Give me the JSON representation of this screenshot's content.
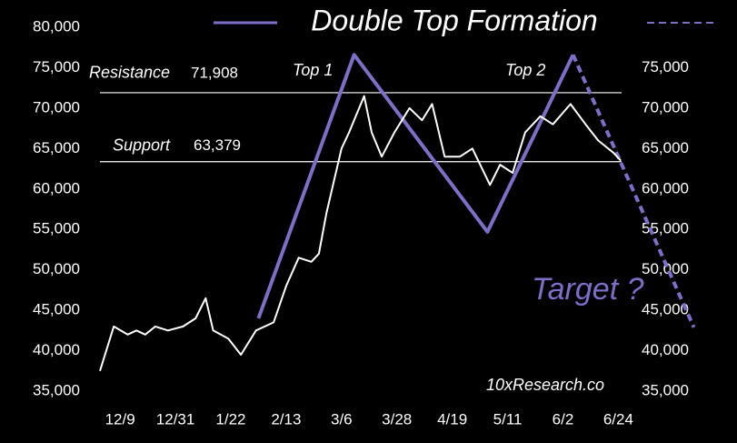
{
  "chart_data": {
    "type": "line",
    "title": "Double Top Formation",
    "xlim": [
      -8,
      230
    ],
    "xticks": [
      {
        "value": 0,
        "label": "12/9"
      },
      {
        "value": 22,
        "label": "12/31"
      },
      {
        "value": 44,
        "label": "1/22"
      },
      {
        "value": 66,
        "label": "2/13"
      },
      {
        "value": 88,
        "label": "3/6"
      },
      {
        "value": 110,
        "label": "3/28"
      },
      {
        "value": 132,
        "label": "4/19"
      },
      {
        "value": 154,
        "label": "5/11"
      },
      {
        "value": 176,
        "label": "6/2"
      },
      {
        "value": 198,
        "label": "6/24"
      }
    ],
    "ylim": [
      35000,
      80000
    ],
    "yticks": [
      {
        "value": 35000,
        "label": "35,000"
      },
      {
        "value": 40000,
        "label": "40,000"
      },
      {
        "value": 45000,
        "label": "45,000"
      },
      {
        "value": 50000,
        "label": "50,000"
      },
      {
        "value": 55000,
        "label": "55,000"
      },
      {
        "value": 60000,
        "label": "60,000"
      },
      {
        "value": 65000,
        "label": "65,000"
      },
      {
        "value": 70000,
        "label": "70,000"
      },
      {
        "value": 75000,
        "label": "75,000"
      },
      {
        "value": 80000,
        "label": "80,000"
      }
    ],
    "y2lim": [
      35000,
      80000
    ],
    "y2ticks": [
      {
        "value": 35000,
        "label": "35,000"
      },
      {
        "value": 40000,
        "label": "40,000"
      },
      {
        "value": 45000,
        "label": "45,000"
      },
      {
        "value": 50000,
        "label": "50,000"
      },
      {
        "value": 55000,
        "label": "55,000"
      },
      {
        "value": 60000,
        "label": "60,000"
      },
      {
        "value": 65000,
        "label": "65,000"
      },
      {
        "value": 70000,
        "label": "70,000"
      },
      {
        "value": 75000,
        "label": "75,000"
      }
    ],
    "grid": false,
    "series": [
      {
        "color": "#ffffff",
        "style": "solid",
        "x": [
          -8,
          -2.5,
          3,
          6.5,
          10,
          14,
          19,
          25,
          30,
          34,
          37,
          43,
          48,
          54,
          61,
          66,
          71,
          76,
          79,
          82,
          88,
          91,
          97,
          100,
          104,
          109,
          115,
          120,
          124,
          129,
          135,
          140,
          147,
          151,
          156,
          161,
          167,
          172,
          179,
          185,
          190,
          196,
          199
        ],
        "values": [
          37500,
          43000,
          42000,
          42500,
          42000,
          43000,
          42500,
          43000,
          44000,
          46500,
          42500,
          41500,
          39500,
          42500,
          43500,
          48000,
          51500,
          51000,
          52000,
          57000,
          65000,
          67000,
          71500,
          67000,
          64000,
          67000,
          70000,
          68500,
          70500,
          64000,
          64000,
          65000,
          60500,
          63000,
          62000,
          67000,
          69000,
          68000,
          70500,
          68000,
          66000,
          64500,
          63500
        ]
      },
      {
        "color": "#7b6fc8",
        "style": "solid",
        "x": [
          55,
          93,
          146,
          180
        ],
        "values": [
          44000,
          76600,
          54700,
          76600
        ]
      },
      {
        "color": "#7b6fc8",
        "style": "dashed",
        "x": [
          180,
          228
        ],
        "values": [
          76600,
          42900
        ]
      }
    ],
    "levels": [
      {
        "label": "Resistance",
        "value": 71908,
        "value_label": "71,908"
      },
      {
        "label": "Support",
        "value": 63379,
        "value_label": "63,379"
      }
    ],
    "annotations": [
      "Top 1",
      "Top 2",
      "Target ?",
      "10xResearch.co"
    ]
  }
}
